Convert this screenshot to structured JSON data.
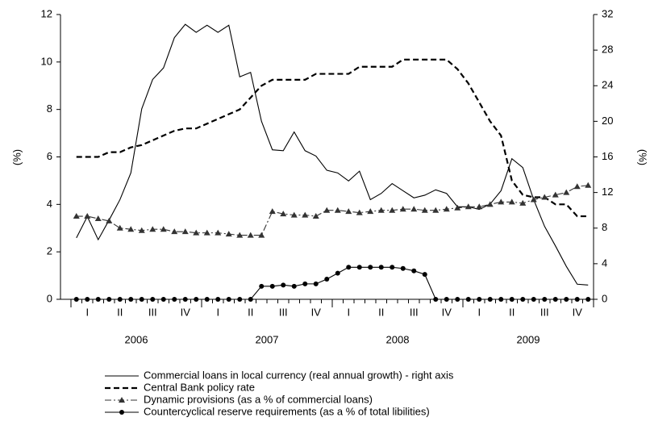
{
  "chart_data": {
    "type": "line",
    "ylabel": "(%)",
    "y2label": "(%)",
    "ylim": [
      0,
      12
    ],
    "yticks": [
      0,
      2,
      4,
      6,
      8,
      10,
      12
    ],
    "y2lim": [
      0,
      32
    ],
    "y2ticks": [
      0,
      4,
      8,
      12,
      16,
      20,
      24,
      28,
      32
    ],
    "quarters": [
      "I",
      "II",
      "III",
      "IV",
      "I",
      "II",
      "III",
      "IV",
      "I",
      "II",
      "III",
      "IV",
      "I",
      "II",
      "III",
      "IV"
    ],
    "years": [
      "2006",
      "2007",
      "2008",
      "2009"
    ],
    "series": [
      {
        "name": "Commercial loans in local currency (real annual growth) - right axis",
        "axis": "y2",
        "color": "#000000",
        "style": "solid",
        "marker": "none",
        "values": [
          6.9,
          9.3,
          6.7,
          8.9,
          11.2,
          14.2,
          21.4,
          24.7,
          26.0,
          29.4,
          30.9,
          30.0,
          30.8,
          30.0,
          30.8,
          25.0,
          25.5,
          20.0,
          16.8,
          16.7,
          18.8,
          16.7,
          16.1,
          14.5,
          14.2,
          13.3,
          14.4,
          11.2,
          11.9,
          13.0,
          12.2,
          11.4,
          11.7,
          12.3,
          11.9,
          10.4,
          10.4,
          10.1,
          10.7,
          12.2,
          15.8,
          14.8,
          11.2,
          8.2,
          6.0,
          3.7,
          1.7,
          1.6
        ]
      },
      {
        "name": "Central Bank policy rate",
        "axis": "y",
        "color": "#000000",
        "style": "dashed",
        "marker": "none",
        "values": [
          6.0,
          6.0,
          6.0,
          6.2,
          6.2,
          6.4,
          6.5,
          6.7,
          6.9,
          7.1,
          7.2,
          7.2,
          7.4,
          7.6,
          7.8,
          8.0,
          8.5,
          9.0,
          9.25,
          9.25,
          9.25,
          9.25,
          9.5,
          9.5,
          9.5,
          9.5,
          9.8,
          9.8,
          9.8,
          9.8,
          10.1,
          10.1,
          10.1,
          10.1,
          10.1,
          9.7,
          9.1,
          8.3,
          7.5,
          6.9,
          5.0,
          4.4,
          4.3,
          4.3,
          4.0,
          4.0,
          3.5,
          3.5
        ]
      },
      {
        "name": "Dynamic provisions (as a % of commercial loans)",
        "axis": "y",
        "color": "#333333",
        "style": "dashdot",
        "marker": "triangle",
        "values": [
          3.5,
          3.5,
          3.4,
          3.3,
          3.0,
          2.95,
          2.9,
          2.95,
          2.95,
          2.85,
          2.85,
          2.8,
          2.8,
          2.8,
          2.75,
          2.7,
          2.7,
          2.7,
          3.7,
          3.6,
          3.55,
          3.55,
          3.5,
          3.75,
          3.75,
          3.7,
          3.65,
          3.7,
          3.75,
          3.75,
          3.8,
          3.8,
          3.75,
          3.75,
          3.8,
          3.85,
          3.9,
          3.9,
          4.0,
          4.1,
          4.1,
          4.05,
          4.2,
          4.3,
          4.4,
          4.5,
          4.75,
          4.8
        ]
      },
      {
        "name": "Countercyclical reserve requirements (as a % of total libilities)",
        "axis": "y",
        "color": "#000000",
        "style": "solid",
        "marker": "circle",
        "values": [
          0,
          0,
          0,
          0,
          0,
          0,
          0,
          0,
          0,
          0,
          0,
          0,
          0,
          0,
          0,
          0,
          0,
          0.55,
          0.55,
          0.6,
          0.55,
          0.65,
          0.65,
          0.85,
          1.1,
          1.35,
          1.35,
          1.35,
          1.35,
          1.35,
          1.3,
          1.2,
          1.05,
          0,
          0,
          0,
          0,
          0,
          0,
          0,
          0,
          0,
          0,
          0,
          0,
          0,
          0,
          0
        ]
      }
    ]
  }
}
